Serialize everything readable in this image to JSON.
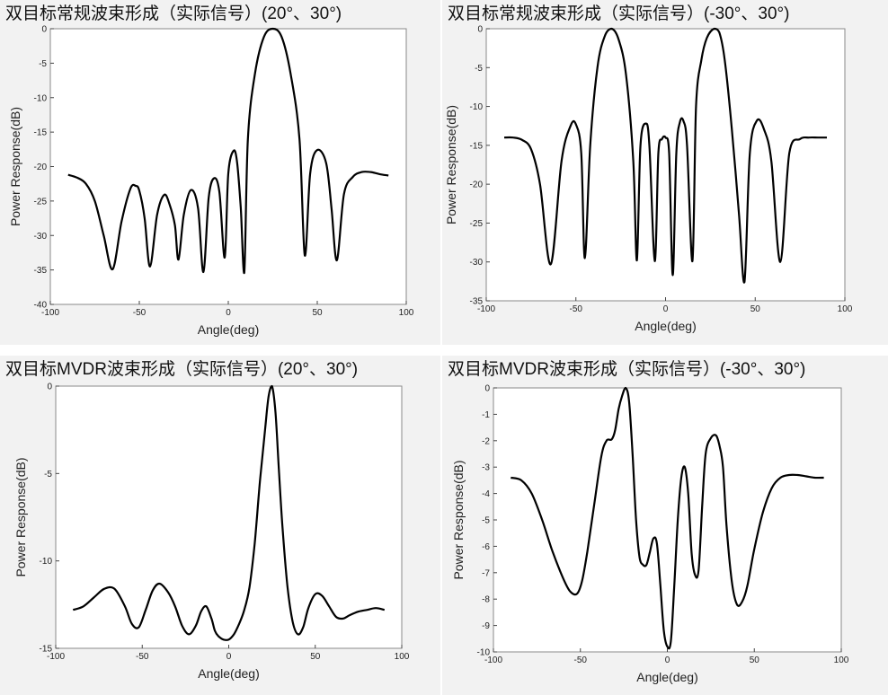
{
  "chart_data": [
    {
      "type": "line",
      "title": "双目标常规波束形成（实际信号）(20°、30°)",
      "xlabel": "Angle(deg)",
      "ylabel": "Power Response(dB)",
      "xlim": [
        -100,
        100
      ],
      "ylim": [
        -40,
        0
      ],
      "xticks": [
        "-100",
        "-50",
        "0",
        "50",
        "100"
      ],
      "yticks": [
        "0",
        "-5",
        "-10",
        "-15",
        "-20",
        "-25",
        "-30",
        "-35",
        "-40"
      ],
      "grid": false,
      "series": [
        {
          "color": "#000000",
          "x": [
            -90,
            -85,
            -80,
            -75,
            -70,
            -65,
            -60,
            -55,
            -52,
            -50,
            -47,
            -44,
            -40,
            -36,
            -33,
            -30,
            -28,
            -25,
            -21,
            -17,
            -14,
            -11,
            -8,
            -5,
            -2,
            0,
            3,
            5,
            7,
            9,
            11,
            15,
            20,
            25,
            30,
            35,
            40,
            43,
            46,
            50,
            55,
            58,
            61,
            65,
            70,
            75,
            80,
            85,
            90
          ],
          "y": [
            -21.2,
            -21.6,
            -22.5,
            -25,
            -30,
            -34.9,
            -28,
            -23.2,
            -22.8,
            -23.5,
            -27.5,
            -34.5,
            -27,
            -24.1,
            -25.5,
            -28.5,
            -33.5,
            -27,
            -23.4,
            -26,
            -35.3,
            -24.5,
            -21.7,
            -23.7,
            -33.2,
            -21,
            -17.7,
            -19.5,
            -26,
            -35.4,
            -16,
            -6.5,
            -1.2,
            0,
            -1.2,
            -6.5,
            -16,
            -32.9,
            -21,
            -17.6,
            -19.5,
            -26,
            -33.6,
            -24,
            -21.5,
            -20.8,
            -20.8,
            -21.1,
            -21.3
          ]
        }
      ]
    },
    {
      "type": "line",
      "title": "双目标常规波束形成（实际信号）(-30°、30°)",
      "xlabel": "Angle(deg)",
      "ylabel": "Power Response(dB)",
      "xlim": [
        -100,
        100
      ],
      "ylim": [
        -35,
        0
      ],
      "xticks": [
        "-100",
        "-50",
        "0",
        "50",
        "100"
      ],
      "yticks": [
        "0",
        "-5",
        "-10",
        "-15",
        "-20",
        "-25",
        "-30",
        "-35"
      ],
      "grid": false,
      "series": [
        {
          "color": "#000000",
          "x": [
            -90,
            -85,
            -80,
            -75,
            -70,
            -64,
            -58,
            -53,
            -50,
            -47,
            -45,
            -42,
            -38,
            -34,
            -30,
            -26,
            -22,
            -18,
            -16,
            -14,
            -11,
            -9,
            -6,
            -4,
            -2,
            0,
            2,
            4,
            6,
            8,
            10,
            12,
            15,
            17,
            20,
            23,
            27,
            30,
            33,
            37,
            41,
            44,
            47,
            51,
            55,
            59,
            64,
            69,
            75,
            80,
            85,
            90
          ],
          "y": [
            -14,
            -14,
            -14.3,
            -15.5,
            -20,
            -30.3,
            -17,
            -12.5,
            -12.3,
            -16,
            -29.5,
            -15,
            -5,
            -1,
            0,
            -1.5,
            -6,
            -17,
            -29.8,
            -15,
            -12.2,
            -15,
            -29.9,
            -16,
            -14.2,
            -14,
            -16,
            -31.7,
            -16,
            -12,
            -11.9,
            -15,
            -29.9,
            -10,
            -4,
            -1.2,
            0,
            -0.5,
            -4,
            -13,
            -24,
            -32.6,
            -16,
            -11.8,
            -13,
            -17,
            -30,
            -16,
            -14.2,
            -14,
            -14,
            -14
          ]
        }
      ]
    },
    {
      "type": "line",
      "title": "双目标MVDR波束形成（实际信号）(20°、30°)",
      "xlabel": "Angle(deg)",
      "ylabel": "Power Response(dB)",
      "xlim": [
        -100,
        100
      ],
      "ylim": [
        -15,
        0
      ],
      "xticks": [
        "-100",
        "-50",
        "0",
        "50",
        "100"
      ],
      "yticks": [
        "0",
        "-5",
        "-10",
        "-15"
      ],
      "grid": false,
      "series": [
        {
          "color": "#000000",
          "x": [
            -90,
            -84,
            -78,
            -72,
            -66,
            -60,
            -56,
            -52,
            -48,
            -44,
            -40,
            -35,
            -31,
            -27,
            -23,
            -19,
            -16,
            -13,
            -10,
            -8,
            -6,
            -3,
            0,
            3,
            6,
            9,
            12,
            15,
            18,
            21,
            23,
            25,
            27,
            29,
            31,
            34,
            37,
            40,
            43,
            46,
            50,
            54,
            58,
            62,
            66,
            70,
            75,
            80,
            85,
            90
          ],
          "y": [
            -12.8,
            -12.6,
            -12.1,
            -11.6,
            -11.6,
            -12.6,
            -13.6,
            -13.8,
            -12.8,
            -11.7,
            -11.3,
            -11.8,
            -12.6,
            -13.7,
            -14.2,
            -13.7,
            -12.9,
            -12.6,
            -13.3,
            -14,
            -14.3,
            -14.5,
            -14.5,
            -14.2,
            -13.6,
            -12.8,
            -11.5,
            -9,
            -5.5,
            -2.5,
            -0.6,
            0,
            -1.5,
            -4.8,
            -8,
            -11.5,
            -13.5,
            -14.2,
            -13.8,
            -12.7,
            -11.9,
            -12,
            -12.6,
            -13.2,
            -13.3,
            -13.1,
            -12.9,
            -12.8,
            -12.7,
            -12.8
          ]
        }
      ]
    },
    {
      "type": "line",
      "title": "双目标MVDR波束形成（实际信号）(-30°、30°)",
      "xlabel": "Angle(deg)",
      "ylabel": "Power Response(dB)",
      "xlim": [
        -100,
        100
      ],
      "ylim": [
        -10,
        0
      ],
      "xticks": [
        "-100",
        "-50",
        "0",
        "50",
        "100"
      ],
      "yticks": [
        "0",
        "-1",
        "-2",
        "-3",
        "-4",
        "-5",
        "-6",
        "-7",
        "-8",
        "-9",
        "-10"
      ],
      "grid": false,
      "series": [
        {
          "color": "#000000",
          "x": [
            -90,
            -84,
            -78,
            -72,
            -66,
            -60,
            -56,
            -52,
            -49,
            -46,
            -42,
            -38,
            -35,
            -32,
            -30,
            -28,
            -26,
            -24,
            -22,
            -20,
            -18,
            -16,
            -14,
            -12,
            -10,
            -8,
            -6,
            -4,
            -2,
            0,
            2,
            4,
            6,
            8,
            10,
            12,
            14,
            16,
            18,
            20,
            22,
            25,
            28,
            30,
            32,
            34,
            37,
            40,
            43,
            46,
            50,
            55,
            60,
            65,
            70,
            75,
            80,
            85,
            90
          ],
          "y": [
            -3.4,
            -3.5,
            -4,
            -5,
            -6.2,
            -7.2,
            -7.7,
            -7.8,
            -7.3,
            -6.2,
            -4.4,
            -2.6,
            -2,
            -1.95,
            -1.6,
            -0.8,
            -0.3,
            0,
            -0.5,
            -2.5,
            -5,
            -6.4,
            -6.7,
            -6.7,
            -6.2,
            -5.7,
            -5.9,
            -7.5,
            -9.2,
            -9.8,
            -9.6,
            -7.5,
            -5,
            -3.4,
            -3,
            -4,
            -6.3,
            -7.1,
            -6.9,
            -4.5,
            -2.5,
            -1.9,
            -1.8,
            -2.2,
            -3,
            -5.2,
            -7.3,
            -8.2,
            -8.1,
            -7.5,
            -6.1,
            -4.7,
            -3.8,
            -3.4,
            -3.3,
            -3.3,
            -3.35,
            -3.4,
            -3.4
          ]
        }
      ]
    }
  ]
}
